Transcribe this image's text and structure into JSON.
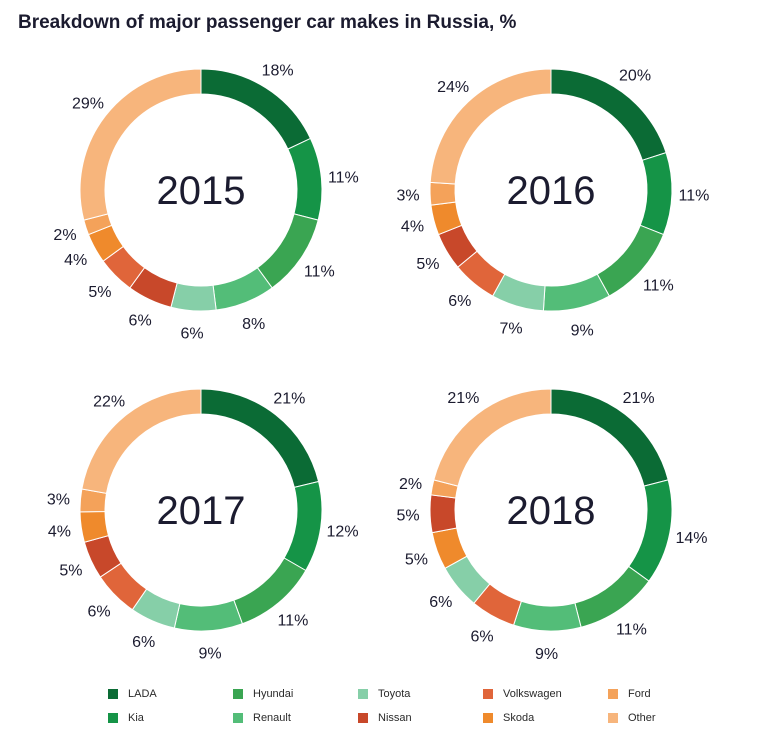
{
  "title": "Breakdown of major passenger car makes in Russia, %",
  "colors": {
    "LADA": "#0b6b35",
    "Kia": "#159447",
    "Hyundai": "#3aa552",
    "Renault": "#53bd78",
    "Toyota": "#86cfa8",
    "Nissan": "#c8482a",
    "Volkswagen": "#e0653a",
    "Skoda": "#ef8a2c",
    "Ford": "#f4a25a",
    "Other": "#f7b57c"
  },
  "legend": {
    "items": [
      "LADA",
      "Kia",
      "Hyundai",
      "Renault",
      "Toyota",
      "Nissan",
      "Volkswagen",
      "Skoda",
      "Ford",
      "Other"
    ]
  },
  "chart_data": [
    {
      "type": "pie",
      "center_label": "2015",
      "slices": [
        {
          "make": "LADA",
          "value": 18,
          "label": "18%"
        },
        {
          "make": "Kia",
          "value": 11,
          "label": "11%"
        },
        {
          "make": "Hyundai",
          "value": 11,
          "label": "11%"
        },
        {
          "make": "Renault",
          "value": 8,
          "label": "8%"
        },
        {
          "make": "Toyota",
          "value": 6,
          "label": "6%"
        },
        {
          "make": "Nissan",
          "value": 6,
          "label": "6%"
        },
        {
          "make": "Volkswagen",
          "value": 5,
          "label": "5%"
        },
        {
          "make": "Skoda",
          "value": 4,
          "label": "4%"
        },
        {
          "make": "Ford",
          "value": 2,
          "label": "2%"
        },
        {
          "make": "Other",
          "value": 29,
          "label": "29%"
        }
      ]
    },
    {
      "type": "pie",
      "center_label": "2016",
      "slices": [
        {
          "make": "LADA",
          "value": 20,
          "label": "20%"
        },
        {
          "make": "Kia",
          "value": 11,
          "label": "11%"
        },
        {
          "make": "Hyundai",
          "value": 11,
          "label": "11%"
        },
        {
          "make": "Renault",
          "value": 9,
          "label": "9%"
        },
        {
          "make": "Toyota",
          "value": 7,
          "label": "7%"
        },
        {
          "make": "Volkswagen",
          "value": 6,
          "label": "6%"
        },
        {
          "make": "Nissan",
          "value": 5,
          "label": "5%"
        },
        {
          "make": "Skoda",
          "value": 4,
          "label": "4%"
        },
        {
          "make": "Ford",
          "value": 3,
          "label": "3%"
        },
        {
          "make": "Other",
          "value": 24,
          "label": "24%"
        }
      ]
    },
    {
      "type": "pie",
      "center_label": "2017",
      "slices": [
        {
          "make": "LADA",
          "value": 21,
          "label": "21%"
        },
        {
          "make": "Kia",
          "value": 12,
          "label": "12%"
        },
        {
          "make": "Hyundai",
          "value": 11,
          "label": "11%"
        },
        {
          "make": "Renault",
          "value": 9,
          "label": "9%"
        },
        {
          "make": "Toyota",
          "value": 6,
          "label": "6%"
        },
        {
          "make": "Volkswagen",
          "value": 6,
          "label": "6%"
        },
        {
          "make": "Nissan",
          "value": 5,
          "label": "5%"
        },
        {
          "make": "Skoda",
          "value": 4,
          "label": "4%"
        },
        {
          "make": "Ford",
          "value": 3,
          "label": "3%"
        },
        {
          "make": "Other",
          "value": 22,
          "label": "22%"
        }
      ]
    },
    {
      "type": "pie",
      "center_label": "2018",
      "slices": [
        {
          "make": "LADA",
          "value": 21,
          "label": "21%"
        },
        {
          "make": "Kia",
          "value": 14,
          "label": "14%"
        },
        {
          "make": "Hyundai",
          "value": 11,
          "label": "11%"
        },
        {
          "make": "Renault",
          "value": 9,
          "label": "9%"
        },
        {
          "make": "Volkswagen",
          "value": 6,
          "label": "6%"
        },
        {
          "make": "Toyota",
          "value": 6,
          "label": "6%"
        },
        {
          "make": "Skoda",
          "value": 5,
          "label": "5%"
        },
        {
          "make": "Nissan",
          "value": 5,
          "label": "5%"
        },
        {
          "make": "Ford",
          "value": 2,
          "label": "2%"
        },
        {
          "make": "Other",
          "value": 21,
          "label": "21%"
        }
      ]
    }
  ]
}
